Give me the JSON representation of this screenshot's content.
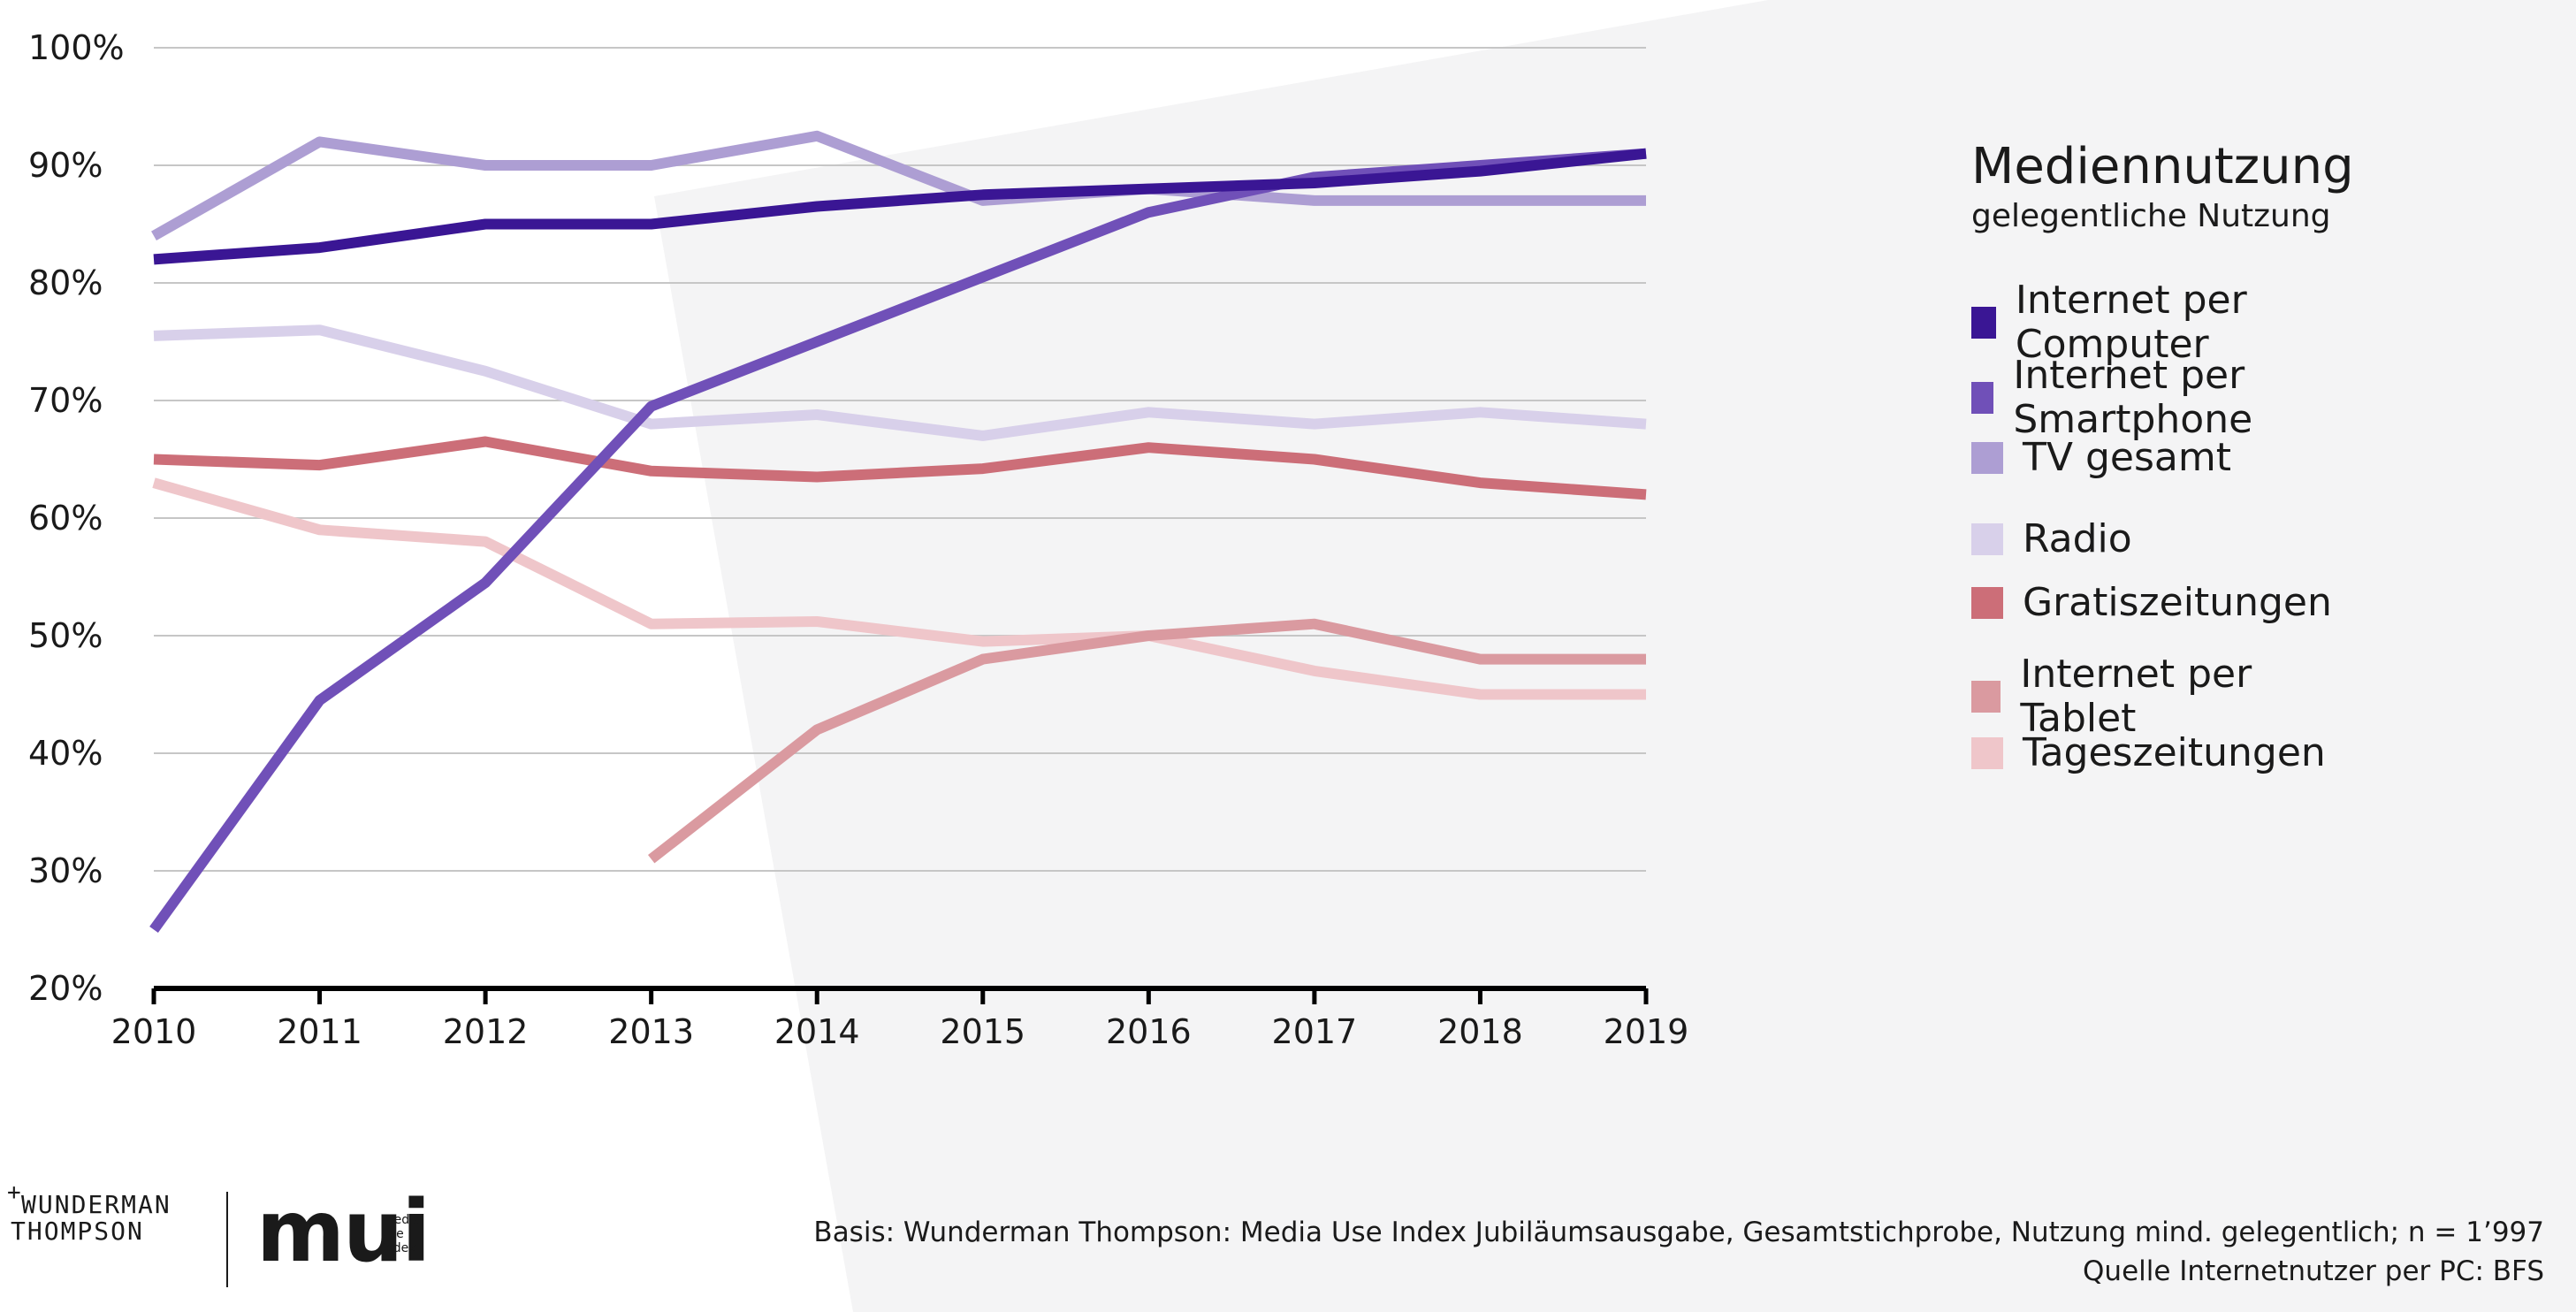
{
  "chart_data": {
    "type": "line",
    "title": "Mediennutzung",
    "subtitle": "gelegentliche Nutzung",
    "x": [
      2010,
      2011,
      2012,
      2013,
      2014,
      2015,
      2016,
      2017,
      2018,
      2019
    ],
    "x_tick_labels": [
      "2010",
      "2011",
      "2012",
      "2013",
      "2014",
      "2015",
      "2016",
      "2017",
      "2018",
      "2019"
    ],
    "ylim": [
      20,
      100
    ],
    "y_ticks": [
      20,
      30,
      40,
      50,
      60,
      70,
      80,
      90,
      100
    ],
    "y_tick_labels": [
      "20%",
      "30%",
      "40%",
      "50%",
      "60%",
      "70%",
      "80%",
      "90%",
      "100%"
    ],
    "grid": true,
    "legend_position": "right",
    "series": [
      {
        "name": "Internet per Computer",
        "color": "#3a1694",
        "values": [
          82,
          83,
          85,
          85,
          86.5,
          87.5,
          88,
          88.5,
          89.5,
          91
        ]
      },
      {
        "name": "Internet per Smartphone",
        "color": "#7050b8",
        "values": [
          25,
          44.5,
          54.5,
          69.5,
          75,
          80.5,
          86,
          89,
          90,
          91
        ]
      },
      {
        "name": "TV gesamt",
        "color": "#ad9ed3",
        "values": [
          84,
          92,
          90,
          90,
          92.5,
          87,
          88,
          87,
          87,
          87
        ]
      },
      {
        "name": "Radio",
        "color": "#d8d0ea",
        "values": [
          75.5,
          76,
          72.5,
          68,
          68.8,
          67,
          69,
          68,
          69,
          68
        ]
      },
      {
        "name": "Gratiszeitungen",
        "color": "#cc6e78",
        "values": [
          65,
          64.5,
          66.5,
          64,
          63.5,
          64.2,
          66,
          65,
          63,
          62
        ]
      },
      {
        "name": "Internet per Tablet",
        "color": "#da9aa0",
        "values": [
          null,
          null,
          null,
          31,
          42,
          48,
          50,
          51,
          48,
          48
        ]
      },
      {
        "name": "Tageszeitungen",
        "color": "#efc6ca",
        "values": [
          63,
          59,
          58,
          51,
          51.2,
          49.5,
          50,
          47,
          45,
          45
        ]
      }
    ]
  },
  "colors": {
    "panel_background": "#f4f4f5",
    "grid": "#c6c6c6",
    "axis": "#000000"
  },
  "logo": {
    "line1": "WUNDERMAN",
    "line2": "THOMPSON",
    "plus": "+",
    "mui": "mui",
    "mui_sub": [
      "media",
      "use",
      "index"
    ]
  },
  "footer": {
    "line1": "Basis: Wunderman Thompson: Media Use Index Jubiläumsausgabe, Gesamtstichprobe, Nutzung mind. gelegentlich; n = 1’997",
    "line2": "Quelle Internetnutzer per PC: BFS"
  }
}
